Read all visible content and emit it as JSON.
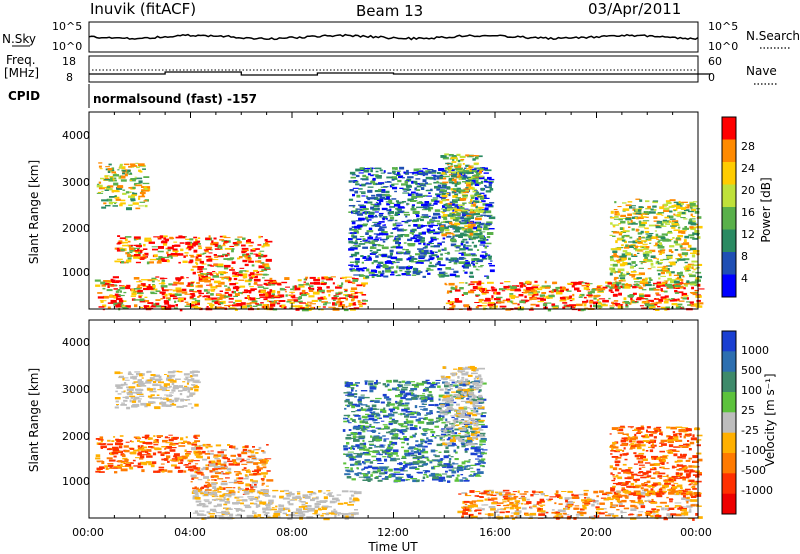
{
  "header": {
    "title": "Inuvik (fitACF)",
    "beam": "Beam 13",
    "date": "03/Apr/2011"
  },
  "summary": {
    "nsky_label": "N.Sky",
    "nsky_ticks": [
      "10^5",
      "10^0"
    ],
    "nsearch_label": "N.Search",
    "nsearch_ticks": [
      "10^5",
      "10^0"
    ],
    "freq_label": "Freq.",
    "freq_unit": "[MHz]",
    "freq_ticks": [
      "18",
      "8"
    ],
    "nave_label": "Nave",
    "nave_ticks": [
      "60",
      "0"
    ],
    "cpid_label": "CPID",
    "cpid_text": "normalsound (fast) -157"
  },
  "chart_data": [
    {
      "type": "heatmap",
      "name": "power-panel",
      "ylabel": "Slant Range [km]",
      "yticks": [
        "4000",
        "3000",
        "2000",
        "1000"
      ],
      "ylim": [
        180,
        4500
      ],
      "xlim": [
        "00:00",
        "24:00"
      ],
      "colorbar": {
        "label": "Power [dB]",
        "ticks": [
          "28",
          "24",
          "20",
          "16",
          "12",
          "8",
          "4"
        ],
        "colors": [
          "#0000ff",
          "#1f4fb4",
          "#2a8a62",
          "#59b04a",
          "#bfe13a",
          "#ffcc00",
          "#ff8a00",
          "#ff0000"
        ]
      },
      "echo_regions": [
        {
          "t": [
            0.2,
            7.2
          ],
          "r": [
            180,
            900
          ],
          "level": "high"
        },
        {
          "t": [
            0.3,
            2.2
          ],
          "r": [
            2400,
            3400
          ],
          "level": "medium"
        },
        {
          "t": [
            1.0,
            4.0
          ],
          "r": [
            1200,
            1800
          ],
          "level": "high"
        },
        {
          "t": [
            4.0,
            7.0
          ],
          "r": [
            900,
            1800
          ],
          "level": "high"
        },
        {
          "t": [
            7.0,
            10.8
          ],
          "r": [
            180,
            900
          ],
          "level": "high"
        },
        {
          "t": [
            10.2,
            15.8
          ],
          "r": [
            900,
            3300
          ],
          "level": "low"
        },
        {
          "t": [
            13.8,
            15.4
          ],
          "r": [
            1800,
            3600
          ],
          "level": "medium"
        },
        {
          "t": [
            14.0,
            24.0
          ],
          "r": [
            180,
            800
          ],
          "level": "high"
        },
        {
          "t": [
            20.5,
            24.0
          ],
          "r": [
            700,
            2600
          ],
          "level": "medium"
        }
      ]
    },
    {
      "type": "heatmap",
      "name": "velocity-panel",
      "ylabel": "Slant Range [km]",
      "yticks": [
        "4000",
        "3000",
        "2000",
        "1000"
      ],
      "ylim": [
        180,
        4500
      ],
      "xlim": [
        "00:00",
        "24:00"
      ],
      "xticks": [
        "00:00",
        "04:00",
        "08:00",
        "12:00",
        "16:00",
        "20:00",
        "00:00"
      ],
      "xlabel": "Time UT",
      "colorbar": {
        "label": "Velocity [m s⁻¹]",
        "ticks": [
          "1000",
          "500",
          "100",
          "25",
          "-25",
          "-100",
          "-500",
          "-1000"
        ],
        "colors": [
          "#1a3fd1",
          "#2d6fb0",
          "#3e8a6a",
          "#5cc23c",
          "#bdbdbd",
          "#ffb000",
          "#ff7a00",
          "#ff3000",
          "#ee0000"
        ]
      },
      "echo_regions": [
        {
          "t": [
            0.2,
            4.2
          ],
          "r": [
            1200,
            2000
          ],
          "level": "neg-large"
        },
        {
          "t": [
            1.0,
            4.2
          ],
          "r": [
            2600,
            3400
          ],
          "level": "ground"
        },
        {
          "t": [
            4.0,
            7.0
          ],
          "r": [
            700,
            1800
          ],
          "level": "neg-medium"
        },
        {
          "t": [
            4.0,
            10.5
          ],
          "r": [
            180,
            800
          ],
          "level": "ground"
        },
        {
          "t": [
            10.0,
            15.5
          ],
          "r": [
            1000,
            3200
          ],
          "level": "pos-medium"
        },
        {
          "t": [
            13.8,
            15.4
          ],
          "r": [
            1800,
            3500
          ],
          "level": "ground"
        },
        {
          "t": [
            14.5,
            24.0
          ],
          "r": [
            180,
            800
          ],
          "level": "neg-medium"
        },
        {
          "t": [
            20.5,
            24.0
          ],
          "r": [
            700,
            2200
          ],
          "level": "neg-large"
        }
      ]
    }
  ]
}
